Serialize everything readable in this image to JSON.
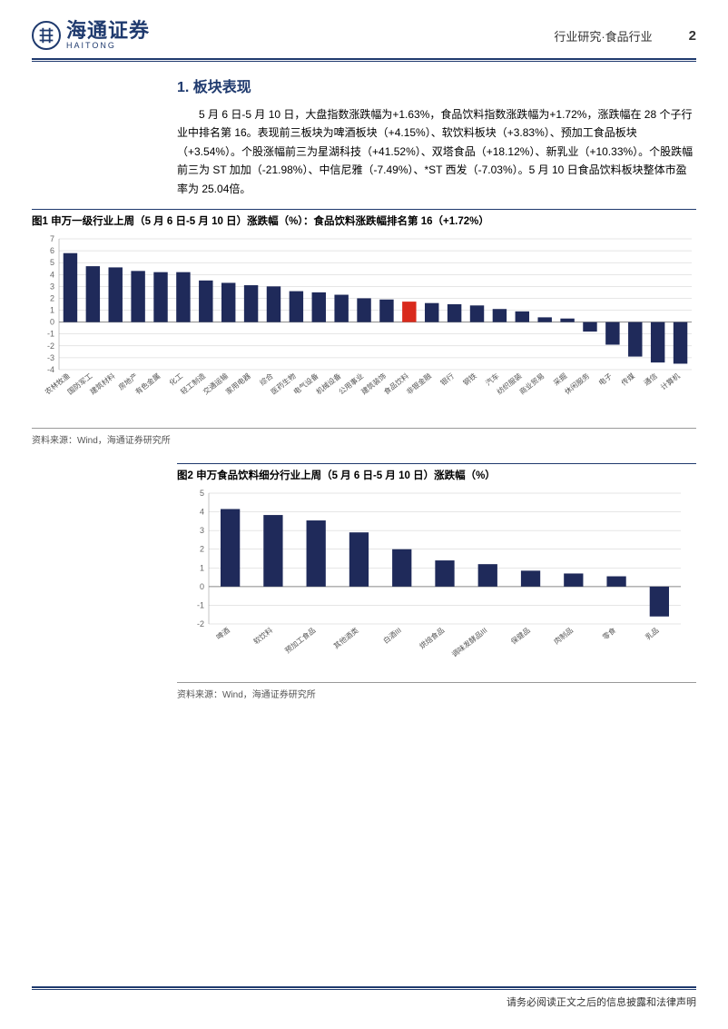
{
  "header": {
    "logo_cn": "海通证券",
    "logo_en": "HAITONG",
    "category": "行业研究·食品行业",
    "page_number": "2"
  },
  "section": {
    "number": "1.",
    "title": "板块表现",
    "paragraph": "5 月 6 日-5 月 10 日，大盘指数涨跌幅为+1.63%，食品饮料指数涨跌幅为+1.72%，涨跌幅在 28 个子行业中排名第 16。表现前三板块为啤酒板块（+4.15%）、软饮料板块（+3.83%）、预加工食品板块（+3.54%）。个股涨幅前三为星湖科技（+41.52%）、双塔食品（+18.12%）、新乳业（+10.33%）。个股跌幅前三为 ST 加加（-21.98%）、中信尼雅（-7.49%）、*ST 西发（-7.03%）。5 月 10 日食品饮料板块整体市盈率为 25.04倍。"
  },
  "figure1": {
    "title": "图1  申万一级行业上周（5 月 6 日-5 月 10 日）涨跌幅（%）：食品饮料涨跌幅排名第 16（+1.72%）",
    "type": "bar",
    "source": "资料来源：Wind，海通证券研究所",
    "ylim": [
      -4,
      7
    ],
    "ytick_step": 1,
    "categories": [
      "农林牧渔",
      "国防军工",
      "建筑材料",
      "房地产",
      "有色金属",
      "化工",
      "轻工制造",
      "交通运输",
      "家用电器",
      "综合",
      "医药生物",
      "电气设备",
      "机械设备",
      "公用事业",
      "建筑装饰",
      "食品饮料",
      "非银金融",
      "银行",
      "钢铁",
      "汽车",
      "纺织服装",
      "商业贸易",
      "采掘",
      "休闲服务",
      "电子",
      "传媒",
      "通信",
      "计算机"
    ],
    "values": [
      5.8,
      4.7,
      4.6,
      4.3,
      4.2,
      4.2,
      3.5,
      3.3,
      3.1,
      3.0,
      2.6,
      2.5,
      2.3,
      2.0,
      1.9,
      1.72,
      1.6,
      1.5,
      1.4,
      1.1,
      0.9,
      0.4,
      0.3,
      -0.8,
      -1.9,
      -2.9,
      -3.4,
      -3.5
    ],
    "highlight_index": 15,
    "bar_color": "#1f2a5a",
    "highlight_color": "#d92a1c",
    "grid_color": "#cccccc",
    "axis_color": "#888888",
    "tick_fontsize": 9,
    "label_fontsize": 8,
    "bar_width": 0.62
  },
  "figure2": {
    "title": "图2  申万食品饮料细分行业上周（5 月 6 日-5 月 10 日）涨跌幅（%）",
    "type": "bar",
    "source": "资料来源：Wind，海通证券研究所",
    "ylim": [
      -2,
      5
    ],
    "ytick_step": 1,
    "categories": [
      "啤酒",
      "软饮料",
      "预加工食品",
      "其他酒类",
      "白酒III",
      "烘焙食品",
      "调味发酵品III",
      "保健品",
      "肉制品",
      "零食",
      "乳品"
    ],
    "values": [
      4.15,
      3.83,
      3.54,
      2.9,
      2.0,
      1.4,
      1.2,
      0.85,
      0.7,
      0.55,
      -1.6
    ],
    "highlight_index": -1,
    "bar_color": "#1f2a5a",
    "grid_color": "#cccccc",
    "axis_color": "#888888",
    "tick_fontsize": 9,
    "label_fontsize": 8,
    "bar_width": 0.45
  },
  "footer": {
    "text": "请务必阅读正文之后的信息披露和法律声明"
  }
}
